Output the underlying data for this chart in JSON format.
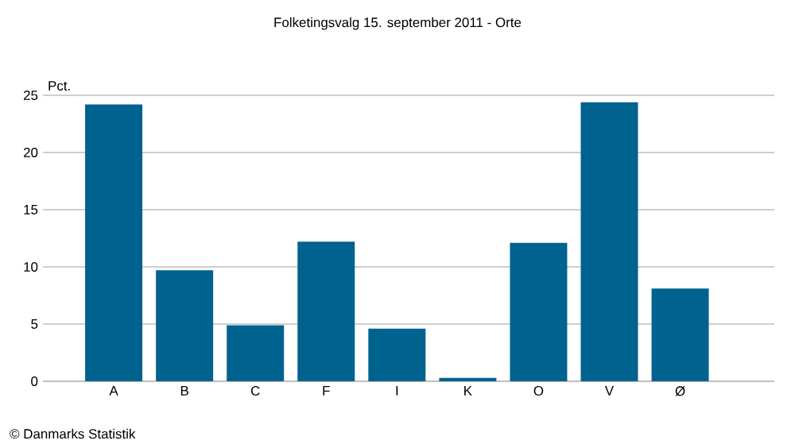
{
  "chart_data": {
    "type": "bar",
    "title": "Folketingsvalg 15. september 2011 - Orte",
    "ylabel": "Pct.",
    "categories": [
      "A",
      "B",
      "C",
      "F",
      "I",
      "K",
      "O",
      "V",
      "Ø"
    ],
    "values": [
      24.2,
      9.7,
      4.9,
      12.2,
      4.6,
      0.3,
      12.1,
      24.4,
      8.1
    ],
    "color": "#00628f",
    "ylim": [
      0,
      25
    ],
    "yticks": [
      0,
      5,
      10,
      15,
      20,
      25
    ],
    "grid": "y",
    "annotations": [
      "© Danmarks Statistik"
    ]
  }
}
